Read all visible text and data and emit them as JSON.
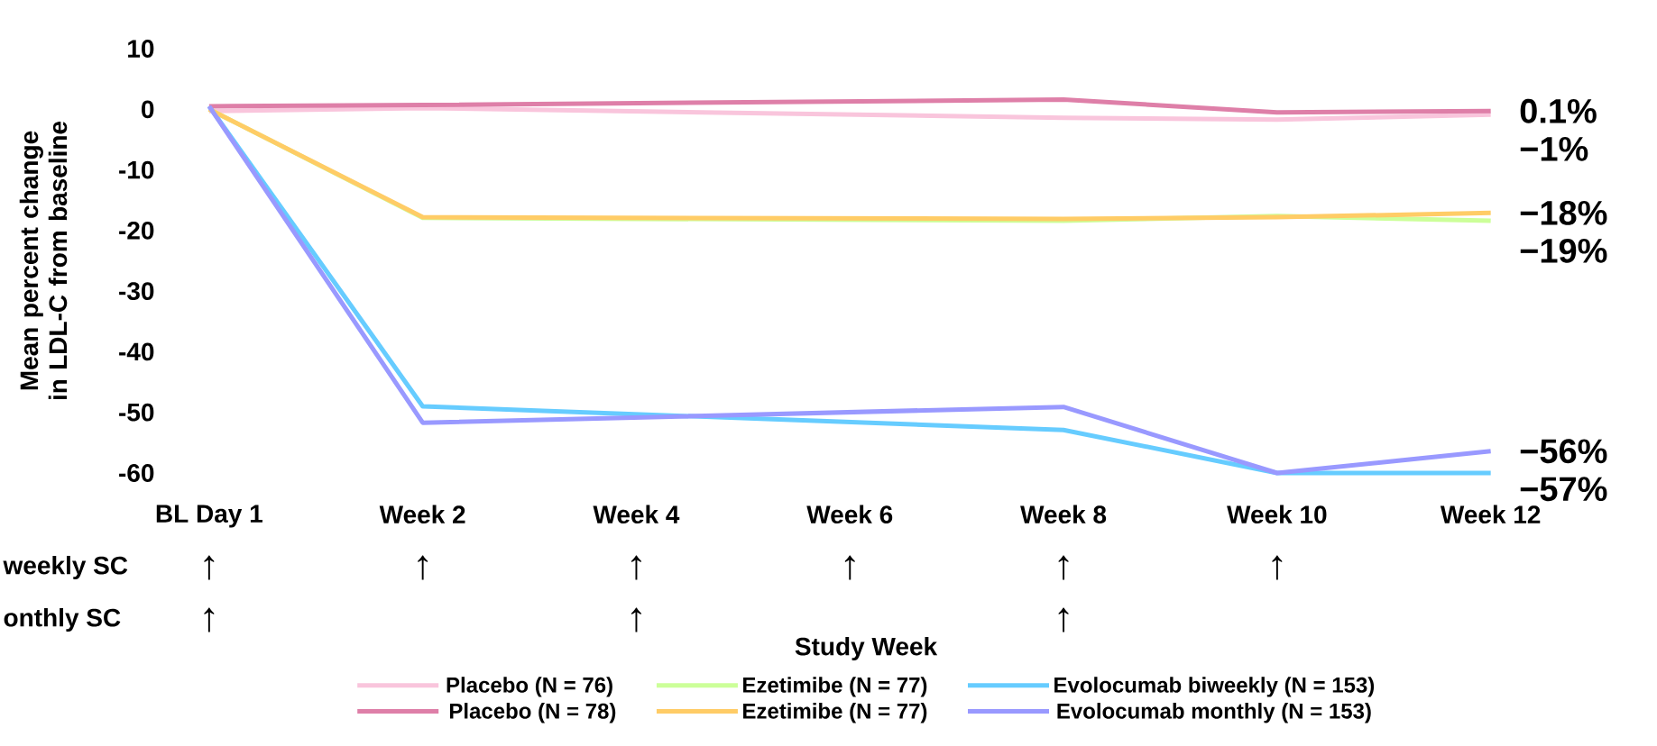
{
  "chart_data": {
    "type": "line",
    "ylabel": "Mean percent change in LDL-C from baseline",
    "xlabel": "Study Week",
    "categories": [
      "BL Day 1",
      "Week 2",
      "Week 4",
      "Week 6",
      "Week 8",
      "Week 10",
      "Week 12"
    ],
    "ylim": [
      -60,
      10
    ],
    "yticks": [
      10,
      0,
      -10,
      -20,
      -30,
      -40,
      -50,
      -60
    ],
    "legend": "bottom",
    "line_style": "solid",
    "series": [
      {
        "name": "Placebo (N = 76)",
        "color": "#f9c5dc",
        "values": [
          -0.3,
          0.2,
          null,
          null,
          -1.4,
          -1.7,
          -0.9
        ]
      },
      {
        "name": "Ezetimibe (N = 77)",
        "color": "#ccff99",
        "values": [
          0,
          -17.9,
          null,
          null,
          -18.4,
          -17.6,
          -18.4
        ]
      },
      {
        "name": "Evolocumab biweekly (N = 153)",
        "color": "#66ccff",
        "values": [
          0.5,
          -49,
          null,
          null,
          -52.9,
          -60,
          -60
        ]
      },
      {
        "name": " Placebo (N = 78)",
        "color": "#de7fa8",
        "values": [
          0.5,
          0.7,
          null,
          null,
          1.6,
          -0.5,
          -0.3
        ]
      },
      {
        "name": "Ezetimibe (N = 77)",
        "color": "#ffcc66",
        "values": [
          0,
          -17.8,
          null,
          null,
          -18.1,
          -17.8,
          -17.1
        ]
      },
      {
        "name": "Evolocumab monthly (N = 153)",
        "color": "#9999ff",
        "values": [
          0.5,
          -51.7,
          null,
          null,
          -49.1,
          -60,
          -56.4
        ]
      }
    ],
    "annotations": [
      {
        "text": "0.1%",
        "x": "Week 12",
        "y": -0.3
      },
      {
        "text": "−1%",
        "x": "Week 12",
        "y": -0.9
      },
      {
        "text": "−18%",
        "x": "Week 12",
        "y": -17.1
      },
      {
        "text": "−19%",
        "x": "Week 12",
        "y": -18.4
      },
      {
        "text": "−56%",
        "x": "Week 12",
        "y": -56.4
      },
      {
        "text": "−57%",
        "x": "Week 12",
        "y": -60
      },
      "weekly SC",
      "↑",
      "↑",
      "↑",
      "↑",
      "↑",
      "↑",
      "onthly SC",
      "↑",
      "↑",
      "↑"
    ]
  }
}
